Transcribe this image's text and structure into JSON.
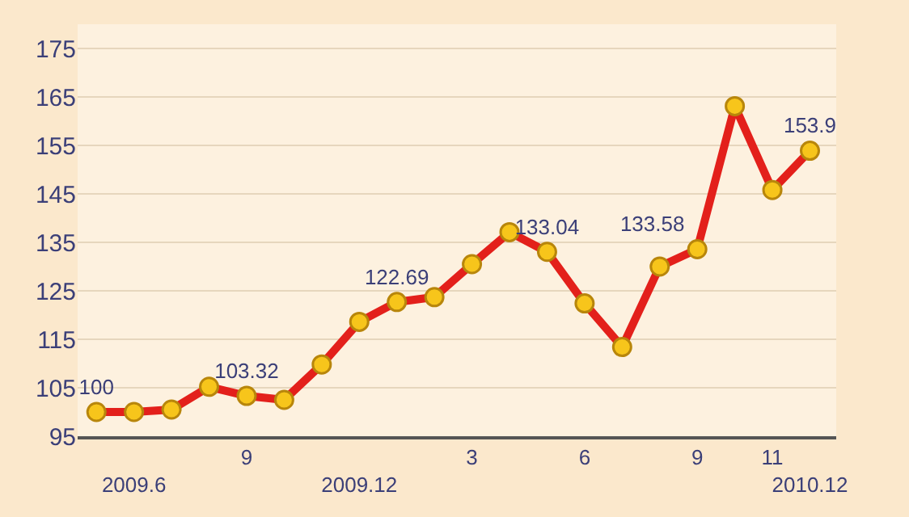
{
  "chart_data": {
    "type": "line",
    "categories": [
      null,
      "2009.6",
      null,
      null,
      "9",
      null,
      null,
      "2009.12",
      null,
      null,
      "3",
      null,
      null,
      "6",
      null,
      null,
      "9",
      null,
      "11",
      "2010.12"
    ],
    "series": [
      {
        "color": "#e3201b",
        "values": [
          100,
          100,
          100.5,
          105.2,
          103.32,
          102.5,
          109.8,
          118.6,
          122.69,
          123.7,
          130.5,
          137.1,
          133.04,
          122.4,
          113.4,
          130,
          133.58,
          163.1,
          145.8,
          153.9
        ],
        "value_labels": [
          "100",
          null,
          null,
          null,
          "103.32",
          null,
          null,
          null,
          "122.69",
          null,
          null,
          null,
          "133.04",
          null,
          null,
          null,
          "133.58",
          null,
          null,
          "153.9"
        ]
      }
    ],
    "ylim": [
      95,
      180
    ],
    "yticks": [
      95,
      105,
      115,
      125,
      135,
      145,
      155,
      165,
      175
    ],
    "grid": "y",
    "marker": "circle",
    "line_style": "solid",
    "legend": false
  }
}
